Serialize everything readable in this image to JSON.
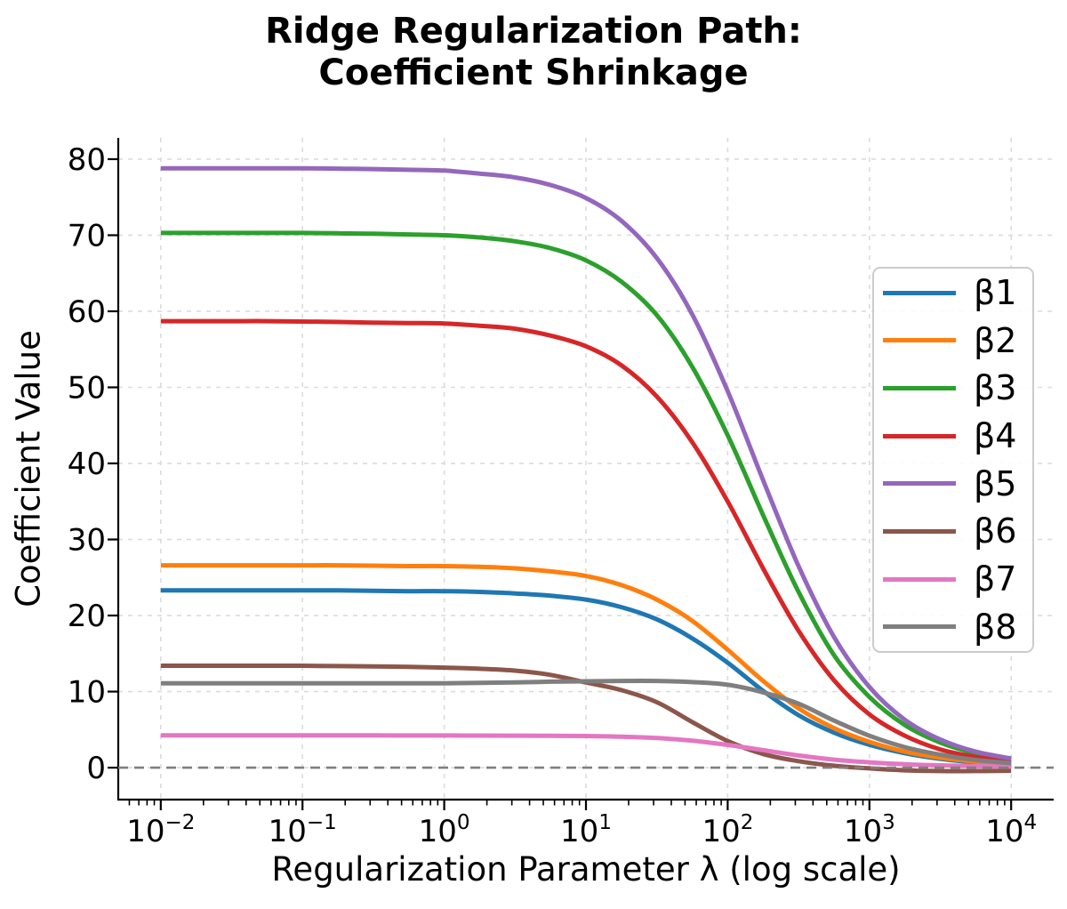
{
  "title": {
    "line1": "Ridge Regularization Path:",
    "line2": "Coefficient Shrinkage"
  },
  "axes": {
    "xlabel": "Regularization Parameter λ (log scale)",
    "ylabel": "Coefficient Value"
  },
  "chart_data": {
    "type": "line",
    "title": "Ridge Regularization Path: Coefficient Shrinkage",
    "xlabel": "Regularization Parameter λ (log scale)",
    "ylabel": "Coefficient Value",
    "x_scale": "log",
    "xlim_log10": [
      -2.3,
      4.3
    ],
    "ylim": [
      -4.2,
      82.8
    ],
    "grid": true,
    "grid_style": "dashed",
    "legend_position": "center right",
    "zero_line": {
      "y": 0,
      "color": "#808080",
      "style": "dashed"
    },
    "x_major_tick_exponents": [
      -2,
      -1,
      0,
      1,
      2,
      3,
      4
    ],
    "y_ticks": [
      0,
      10,
      20,
      30,
      40,
      50,
      60,
      70,
      80
    ],
    "x_log10": [
      -2,
      -1.75,
      -1.5,
      -1.25,
      -1,
      -0.75,
      -0.5,
      -0.25,
      0,
      0.25,
      0.5,
      0.75,
      1,
      1.25,
      1.5,
      1.75,
      2,
      2.25,
      2.5,
      2.75,
      3,
      3.25,
      3.5,
      3.75,
      4
    ],
    "series": [
      {
        "name": "β1",
        "color": "#1f77b4",
        "values": [
          23.3,
          23.3,
          23.3,
          23.3,
          23.3,
          23.3,
          23.25,
          23.2,
          23.2,
          23.1,
          22.9,
          22.6,
          22.1,
          21.1,
          19.5,
          17.0,
          13.8,
          10.1,
          6.9,
          4.6,
          3.0,
          1.9,
          1.15,
          0.7,
          0.45
        ]
      },
      {
        "name": "β2",
        "color": "#ff7f0e",
        "values": [
          26.6,
          26.6,
          26.6,
          26.6,
          26.6,
          26.6,
          26.55,
          26.5,
          26.5,
          26.4,
          26.2,
          25.8,
          25.2,
          24.0,
          22.1,
          19.3,
          15.5,
          11.4,
          7.8,
          5.2,
          3.4,
          2.1,
          1.3,
          0.8,
          0.5
        ]
      },
      {
        "name": "β3",
        "color": "#2ca02c",
        "values": [
          70.3,
          70.3,
          70.3,
          70.3,
          70.3,
          70.25,
          70.2,
          70.1,
          70.0,
          69.7,
          69.2,
          68.3,
          66.7,
          63.9,
          59.5,
          52.7,
          43.7,
          33.2,
          23.1,
          14.8,
          9.3,
          5.6,
          3.3,
          1.9,
          1.1
        ]
      },
      {
        "name": "β4",
        "color": "#d62728",
        "values": [
          58.7,
          58.7,
          58.7,
          58.7,
          58.65,
          58.6,
          58.5,
          58.45,
          58.4,
          58.1,
          57.7,
          56.8,
          55.4,
          52.9,
          48.8,
          42.8,
          35.0,
          26.2,
          18.0,
          11.5,
          7.0,
          4.2,
          2.4,
          1.4,
          0.8
        ]
      },
      {
        "name": "β5",
        "color": "#9467bd",
        "values": [
          78.8,
          78.8,
          78.8,
          78.8,
          78.8,
          78.75,
          78.7,
          78.6,
          78.5,
          78.1,
          77.6,
          76.6,
          74.9,
          71.9,
          67.0,
          59.6,
          49.5,
          37.8,
          26.5,
          17.2,
          10.6,
          6.3,
          3.7,
          2.1,
          1.2
        ]
      },
      {
        "name": "β6",
        "color": "#8c564b",
        "values": [
          13.4,
          13.4,
          13.4,
          13.4,
          13.4,
          13.35,
          13.3,
          13.25,
          13.15,
          13.0,
          12.75,
          12.2,
          11.2,
          10.2,
          8.6,
          6.0,
          3.5,
          1.8,
          0.85,
          0.25,
          -0.1,
          -0.35,
          -0.45,
          -0.45,
          -0.4
        ]
      },
      {
        "name": "β7",
        "color": "#e377c2",
        "values": [
          4.25,
          4.25,
          4.25,
          4.25,
          4.25,
          4.24,
          4.24,
          4.23,
          4.23,
          4.22,
          4.21,
          4.2,
          4.16,
          4.07,
          3.89,
          3.55,
          2.99,
          2.3,
          1.6,
          1.05,
          0.7,
          0.45,
          0.3,
          0.2,
          0.15
        ]
      },
      {
        "name": "β8",
        "color": "#7f7f7f",
        "values": [
          11.1,
          11.1,
          11.1,
          11.1,
          11.1,
          11.1,
          11.1,
          11.1,
          11.1,
          11.15,
          11.2,
          11.3,
          11.35,
          11.4,
          11.4,
          11.25,
          10.9,
          9.9,
          8.4,
          6.2,
          4.2,
          2.7,
          1.7,
          1.0,
          0.6
        ]
      }
    ]
  }
}
